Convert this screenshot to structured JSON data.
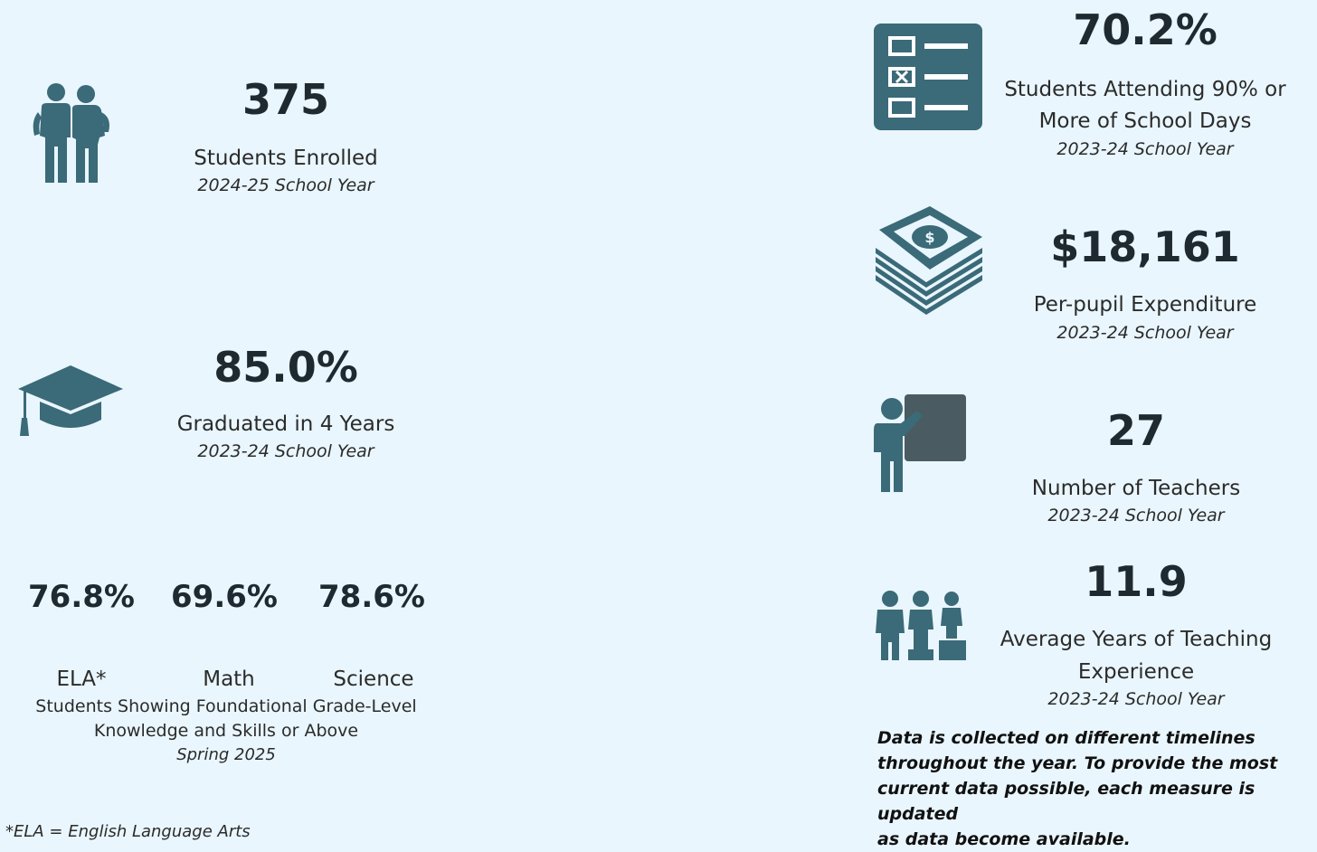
{
  "enrolled": {
    "value": "375",
    "label": "Students Enrolled",
    "year": "2024-25 School Year"
  },
  "graduated": {
    "value": "85.0%",
    "label": "Graduated in 4 Years",
    "year": "2023-24 School Year"
  },
  "subjects": [
    {
      "value": "76.8%",
      "label": "ELA*"
    },
    {
      "value": "69.6%",
      "label": "Math"
    },
    {
      "value": "78.6%",
      "label": "Science"
    }
  ],
  "proficiency": {
    "label_line1": "Students Showing Foundational Grade-Level",
    "label_line2": "Knowledge and Skills or Above",
    "period": "Spring 2025"
  },
  "footnote": "*ELA = English Language Arts",
  "attendance": {
    "value": "70.2%",
    "label_line1": "Students Attending 90% or",
    "label_line2": "More of School Days",
    "year": "2023-24 School Year"
  },
  "expenditure": {
    "value": "$18,161",
    "label": "Per-pupil Expenditure",
    "year": "2023-24 School Year"
  },
  "teachers": {
    "value": "27",
    "label": "Number of Teachers",
    "year": "2023-24 School Year"
  },
  "experience": {
    "value": "11.9",
    "label_line1": "Average Years of Teaching",
    "label_line2": "Experience",
    "year": "2023-24 School Year"
  },
  "data_note": {
    "line1": "Data is collected on different timelines",
    "line2": "throughout the year. To provide the most",
    "line3": "current data possible, each measure is updated",
    "line4": "as data become available."
  },
  "colors": {
    "icon": "#3b6a78",
    "background": "#e9f6fd"
  },
  "icons": [
    "students-icon",
    "graduation-cap-icon",
    "checklist-icon",
    "money-stack-icon",
    "teacher-board-icon",
    "people-podium-icon"
  ]
}
